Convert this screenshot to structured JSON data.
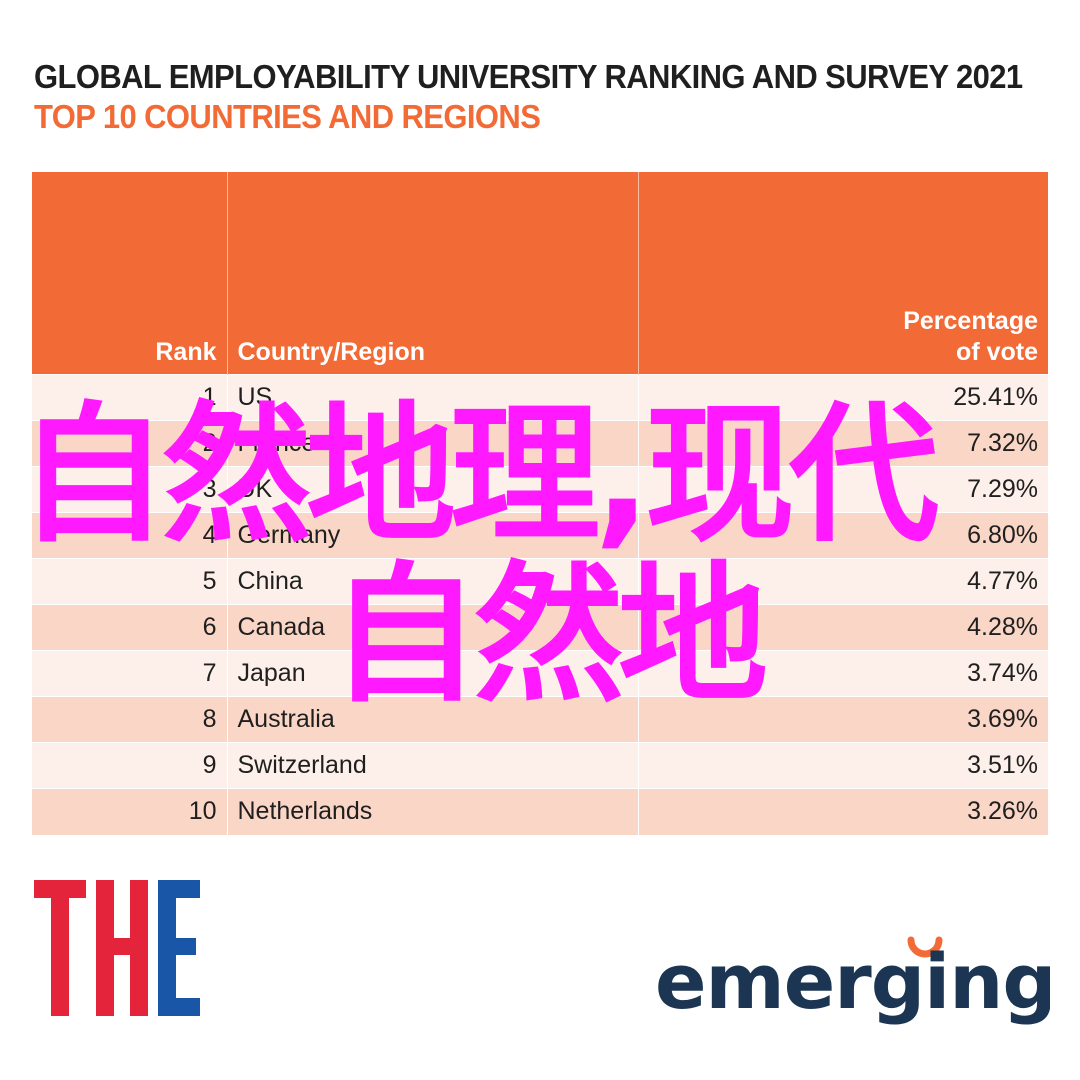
{
  "header": {
    "title": "GLOBAL EMPLOYABILITY UNIVERSITY RANKING AND SURVEY 2021",
    "subtitle": "TOP 10 COUNTRIES AND REGIONS"
  },
  "chart_data": {
    "type": "table",
    "title": "GLOBAL EMPLOYABILITY UNIVERSITY RANKING AND SURVEY 2021",
    "subtitle": "TOP 10 COUNTRIES AND REGIONS",
    "columns": [
      "Rank",
      "Country/Region",
      "Percentage of vote"
    ],
    "rows": [
      {
        "rank": "1",
        "country": "US",
        "percentage": "25.41%"
      },
      {
        "rank": "2",
        "country": "France",
        "percentage": "7.32%"
      },
      {
        "rank": "3",
        "country": "UK",
        "percentage": "7.29%"
      },
      {
        "rank": "4",
        "country": "Germany",
        "percentage": "6.80%"
      },
      {
        "rank": "5",
        "country": "China",
        "percentage": "4.77%"
      },
      {
        "rank": "6",
        "country": "Canada",
        "percentage": "4.28%"
      },
      {
        "rank": "7",
        "country": "Japan",
        "percentage": "3.74%"
      },
      {
        "rank": "8",
        "country": "Australia",
        "percentage": "3.69%"
      },
      {
        "rank": "9",
        "country": "Switzerland",
        "percentage": "3.51%"
      },
      {
        "rank": "10",
        "country": "Netherlands",
        "percentage": "3.26%"
      }
    ]
  },
  "table": {
    "header_rank": "Rank",
    "header_country": "Country/Region",
    "header_pct_line1": "Percentage",
    "header_pct_line2": "of vote"
  },
  "overlay": {
    "line1": "自然地理,现代",
    "line2": "自然地",
    "color": "#ff19ff"
  },
  "logos": {
    "the": "THE",
    "emerging": "emerging"
  },
  "colors": {
    "accent": "#f26a35",
    "row_light": "#fdf0ea",
    "row_dark": "#f9d6c6",
    "the_red": "#e4243b",
    "the_blue": "#1a56a8",
    "emerging_navy": "#1b3553"
  }
}
